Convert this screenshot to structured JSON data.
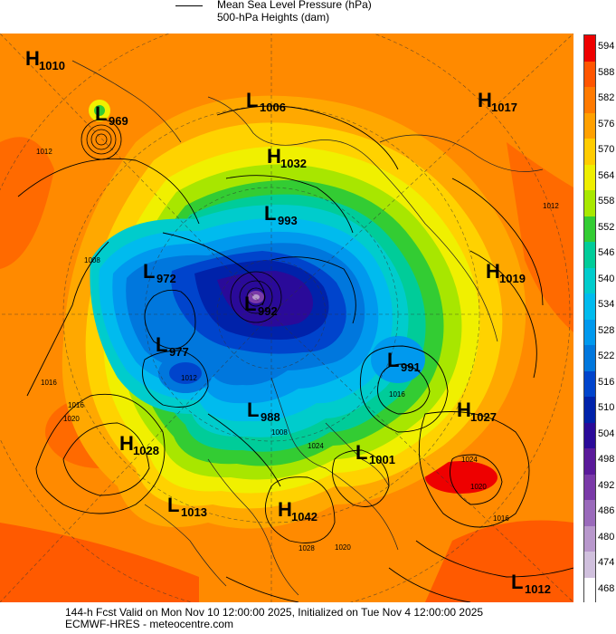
{
  "legend": {
    "mslp_label": "Mean Sea Level Pressure (hPa)",
    "height_label": "500-hPa Heights (dam)"
  },
  "colorbar": {
    "ticks": [
      "594",
      "588",
      "582",
      "576",
      "570",
      "564",
      "558",
      "552",
      "546",
      "540",
      "534",
      "528",
      "522",
      "516",
      "510",
      "504",
      "498",
      "492",
      "486",
      "480",
      "474",
      "468"
    ],
    "colors": [
      "#ee0000",
      "#ff5500",
      "#ff7a00",
      "#ffa000",
      "#ffcc00",
      "#eeee00",
      "#a8e800",
      "#33cc33",
      "#00cc99",
      "#00cccc",
      "#00bbee",
      "#0099ee",
      "#0077dd",
      "#0044cc",
      "#0022aa",
      "#2a0a99",
      "#5a1a9a",
      "#7a3aa8",
      "#9a6abb",
      "#b898cc",
      "#d0c0dd",
      "#ffffff"
    ]
  },
  "centers": [
    {
      "type": "H",
      "value": "1010"
    },
    {
      "type": "L",
      "value": "969"
    },
    {
      "type": "L",
      "value": "1006"
    },
    {
      "type": "H",
      "value": "1017"
    },
    {
      "type": "H",
      "value": "1032"
    },
    {
      "type": "L",
      "value": "993"
    },
    {
      "type": "L",
      "value": "972"
    },
    {
      "type": "L",
      "value": "992"
    },
    {
      "type": "H",
      "value": "1019"
    },
    {
      "type": "L",
      "value": "977"
    },
    {
      "type": "L",
      "value": "991"
    },
    {
      "type": "L",
      "value": "988"
    },
    {
      "type": "H",
      "value": "1027"
    },
    {
      "type": "H",
      "value": "1028"
    },
    {
      "type": "L",
      "value": "1001"
    },
    {
      "type": "L",
      "value": "1013"
    },
    {
      "type": "H",
      "value": "1042"
    },
    {
      "type": "L",
      "value": "1012"
    }
  ],
  "isobar_labels": [
    "1012",
    "1016",
    "1008",
    "1016",
    "1020",
    "1012",
    "1016",
    "1024",
    "1020",
    "1028",
    "1020",
    "1016",
    "1012",
    "1008",
    "1024"
  ],
  "footer": {
    "line1": "144-h Fcst Valid on Mon Nov 10 12:00:00 2025, Initialized on Tue Nov  4 12:00:00 2025",
    "line2": "ECMWF-HRES  - meteocentre.com"
  }
}
